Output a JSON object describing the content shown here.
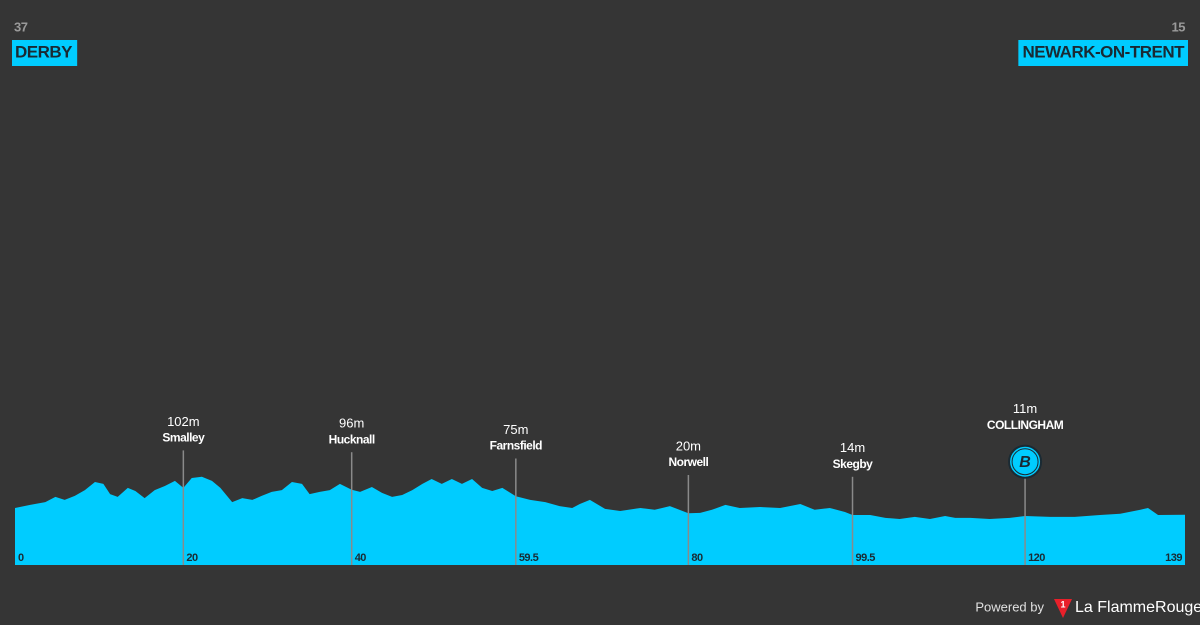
{
  "chart_data": {
    "type": "area",
    "color": "#00ccff",
    "start": {
      "elevation": 37,
      "name": "DERBY"
    },
    "finish": {
      "elevation": 15,
      "name": "NEWARK-ON-TRENT"
    },
    "x": [
      0,
      1.8,
      3.6,
      4.8,
      5.9,
      7.1,
      8.3,
      9.5,
      10.5,
      11.3,
      12.2,
      13.4,
      14.3,
      15.4,
      16.6,
      17.8,
      19,
      20,
      21,
      22.2,
      23.4,
      24.4,
      25.8,
      27,
      28.2,
      29.3,
      30.5,
      31.7,
      32.9,
      34.1,
      35,
      36.2,
      37.4,
      38.6,
      40,
      41,
      42.4,
      43.6,
      44.8,
      46,
      47.2,
      48.4,
      49.5,
      50.7,
      51.9,
      53.1,
      54.3,
      55.5,
      56.7,
      57.9,
      59.5,
      61.2,
      63,
      64.7,
      66.2,
      67.1,
      68.3,
      70.1,
      71.9,
      74.3,
      76,
      77.8,
      80,
      81.4,
      82.8,
      84.4,
      86.1,
      88.5,
      90.9,
      93.3,
      95,
      96.8,
      98.6,
      99.5,
      101.6,
      103.4,
      105.1,
      106.9,
      108.7,
      110.5,
      111.7,
      113.5,
      115.8,
      118.2,
      120,
      123,
      125.9,
      128.9,
      131.3,
      133.7,
      134.6,
      135.8,
      139
    ],
    "values": [
      37,
      47,
      56,
      73,
      63,
      76,
      95,
      121,
      115,
      82,
      73,
      102,
      92,
      69,
      95,
      108,
      125,
      102,
      134,
      138,
      125,
      102,
      56,
      69,
      63,
      76,
      89,
      95,
      121,
      115,
      82,
      89,
      95,
      115,
      96,
      89,
      105,
      86,
      73,
      79,
      95,
      115,
      131,
      115,
      131,
      115,
      131,
      102,
      92,
      102,
      75,
      63,
      56,
      43,
      37,
      50,
      63,
      34,
      27,
      37,
      31,
      43,
      20,
      21,
      31,
      47,
      37,
      40,
      37,
      50,
      31,
      37,
      24,
      14,
      14,
      5,
      1,
      8,
      1,
      11,
      5,
      5,
      1,
      5,
      11,
      8,
      8,
      14,
      18,
      31,
      37,
      14,
      15
    ],
    "xlim": [
      0,
      139
    ],
    "ylim": [
      -148,
      1000
    ],
    "xticks": [
      0,
      20,
      40,
      59.5,
      80,
      99.5,
      120,
      139
    ],
    "markers": [
      {
        "x": 20,
        "value": 102,
        "value_label": "102m",
        "name": "Smalley"
      },
      {
        "x": 40,
        "value": 96,
        "value_label": "96m",
        "name": "Hucknall"
      },
      {
        "x": 59.5,
        "value": 75,
        "value_label": "75m",
        "name": "Farnsfield"
      },
      {
        "x": 80,
        "value": 20,
        "value_label": "20m",
        "name": "Norwell"
      },
      {
        "x": 99.5,
        "value": 14,
        "value_label": "14m",
        "name": "Skegby"
      },
      {
        "x": 120,
        "value": 11,
        "value_label": "11m",
        "name": "COLLINGHAM",
        "badge": "B"
      }
    ],
    "footer": {
      "powered_by": "Powered by",
      "logo_text": "1",
      "brand": "La FlammeRouge"
    }
  }
}
